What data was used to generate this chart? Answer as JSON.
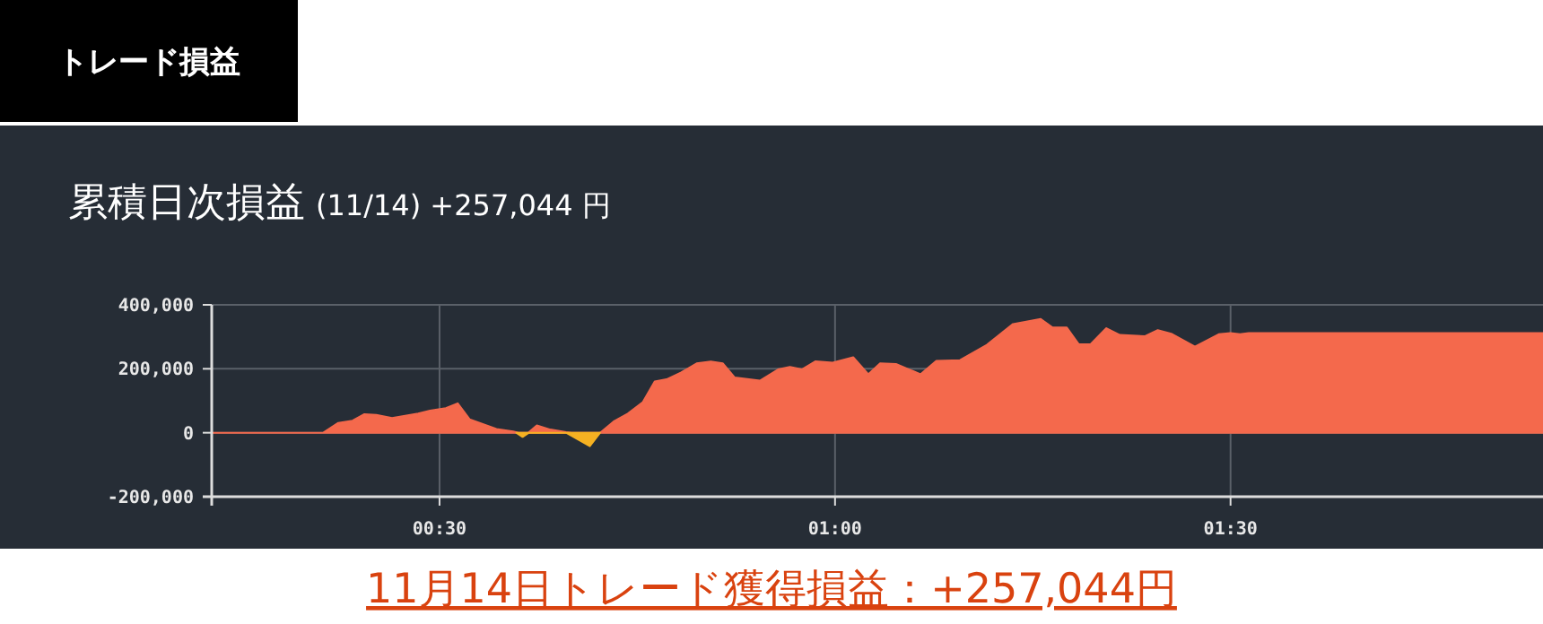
{
  "chart_data": {
    "type": "area",
    "title": "累積日次損益",
    "subtitle": "(11/14) +257,044 円",
    "annotations": [
      "トレード損益",
      "11月14日トレード獲得損益：+257,044円"
    ],
    "xlim": [
      0.212,
      1.895
    ],
    "ylim": [
      -200000,
      400000
    ],
    "xticks": [
      {
        "value": 0.5,
        "label": "00:30"
      },
      {
        "value": 1,
        "label": "01:00"
      },
      {
        "value": 1.5,
        "label": "01:30"
      }
    ],
    "yticks": [
      {
        "value": -200000,
        "label": "-200,000"
      },
      0,
      {
        "value": 200000,
        "label": "200,000"
      },
      {
        "value": 400000,
        "label": "400,000"
      }
    ],
    "grid": true,
    "series": [
      {
        "color": "#f4694c",
        "x": [
          0.212,
          0.353,
          0.372,
          0.39,
          0.405,
          0.42,
          0.44,
          0.473,
          0.488,
          0.508,
          0.523,
          0.538,
          0.572,
          0.593,
          0.6,
          0.612,
          0.623,
          0.64,
          0.66,
          0.667,
          0.703,
          0.72,
          0.738,
          0.757,
          0.772,
          0.787,
          0.805,
          0.825,
          0.843,
          0.858,
          0.873,
          0.905,
          0.928,
          0.943,
          0.958,
          0.975,
          0.997,
          1.023,
          1.042,
          1.057,
          1.077,
          1.108,
          1.128,
          1.158,
          1.192,
          1.225,
          1.26,
          1.275,
          1.293,
          1.308,
          1.323,
          1.343,
          1.36,
          1.392,
          1.408,
          1.425,
          1.455,
          1.485,
          1.5,
          1.512,
          1.523,
          1.895
        ],
        "values": [
          0,
          0,
          31000,
          38000,
          58000,
          56000,
          46000,
          60000,
          69000,
          77000,
          92000,
          42000,
          12000,
          4000,
          0,
          0,
          23000,
          10000,
          2000,
          0,
          0,
          35000,
          60000,
          96000,
          160000,
          167000,
          188000,
          217000,
          223000,
          217000,
          173000,
          163000,
          198000,
          206000,
          198000,
          223000,
          219000,
          236000,
          183000,
          217000,
          215000,
          183000,
          225000,
          227000,
          275000,
          340000,
          356000,
          329000,
          329000,
          277000,
          277000,
          327000,
          306000,
          302000,
          321000,
          310000,
          269000,
          308000,
          312000,
          308000,
          312000,
          312000
        ]
      },
      {
        "color": "#f5b122",
        "x": [
          0.597,
          0.605,
          0.613,
          0.66,
          0.69,
          0.703
        ],
        "values": [
          0,
          -13000,
          0,
          0,
          -42000,
          0
        ]
      }
    ]
  }
}
